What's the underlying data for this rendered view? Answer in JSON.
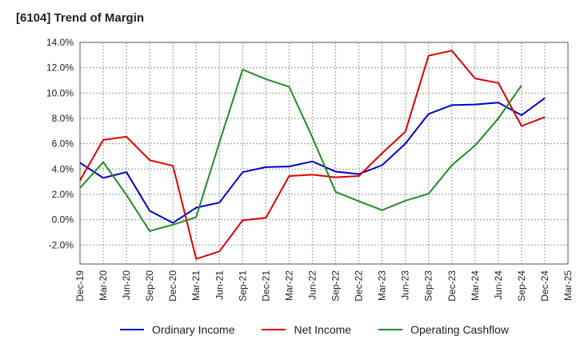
{
  "chart_data": {
    "type": "line",
    "title": "[6104]  Trend of Margin",
    "x": [
      "Dec-19",
      "Mar-20",
      "Jun-20",
      "Sep-20",
      "Dec-20",
      "Mar-21",
      "Jun-21",
      "Sep-21",
      "Dec-21",
      "Mar-22",
      "Jun-22",
      "Sep-22",
      "Dec-22",
      "Mar-23",
      "Jun-23",
      "Sep-23",
      "Dec-23",
      "Mar-24",
      "Jun-24",
      "Sep-24",
      "Dec-24",
      "Mar-25"
    ],
    "ylim": [
      -3.5,
      14.0
    ],
    "yticks": [
      -2.0,
      0.0,
      2.0,
      4.0,
      6.0,
      8.0,
      10.0,
      12.0,
      14.0
    ],
    "ytick_labels": [
      "-2.0%",
      "0.0%",
      "2.0%",
      "4.0%",
      "6.0%",
      "8.0%",
      "10.0%",
      "12.0%",
      "14.0%"
    ],
    "grid": true,
    "legend_position": "bottom",
    "series": [
      {
        "name": "Ordinary Income",
        "color": "#0000cc",
        "values": [
          4.5,
          3.3,
          3.75,
          0.7,
          -0.25,
          0.95,
          1.35,
          3.75,
          4.15,
          4.2,
          4.6,
          3.8,
          3.6,
          4.3,
          6.0,
          8.35,
          9.05,
          9.1,
          9.25,
          8.25,
          9.6,
          null
        ]
      },
      {
        "name": "Net Income",
        "color": "#dd0000",
        "values": [
          3.1,
          6.3,
          6.55,
          4.7,
          4.25,
          -3.1,
          -2.5,
          -0.05,
          0.15,
          3.45,
          3.55,
          3.35,
          3.45,
          5.25,
          6.95,
          12.95,
          13.35,
          11.15,
          10.8,
          7.4,
          8.1,
          null
        ]
      },
      {
        "name": "Operating Cashflow",
        "color": "#228b22",
        "values": [
          2.5,
          4.55,
          1.95,
          -0.9,
          -0.4,
          0.2,
          6.1,
          11.85,
          11.1,
          10.5,
          6.5,
          2.2,
          1.45,
          0.75,
          1.5,
          2.05,
          4.3,
          5.85,
          8.0,
          10.6,
          null,
          null
        ]
      }
    ]
  }
}
